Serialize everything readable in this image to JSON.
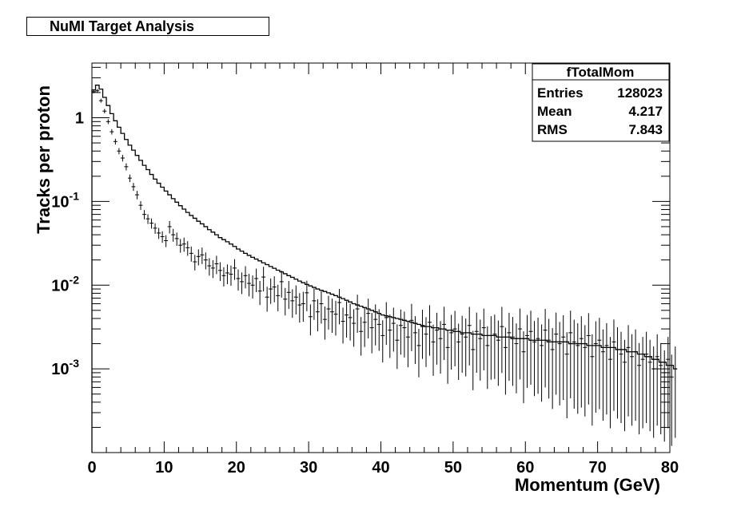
{
  "chart_data": {
    "type": "histogram",
    "title": "NuMI Target Analysis",
    "xlabel": "Momentum (GeV)",
    "ylabel": "Tracks per proton",
    "xlim": [
      0,
      80
    ],
    "ylim": [
      0.0001,
      4.5
    ],
    "ylog": true,
    "x_ticks": [
      "0",
      "10",
      "20",
      "30",
      "40",
      "50",
      "60",
      "70",
      "80"
    ],
    "y_ticks": [
      {
        "value": 1,
        "base": "1",
        "exp": ""
      },
      {
        "value": 0.1,
        "base": "10",
        "exp": "-1"
      },
      {
        "value": 0.01,
        "base": "10",
        "exp": "-2"
      },
      {
        "value": 0.001,
        "base": "10",
        "exp": "-3"
      }
    ],
    "stats_box": {
      "name": "fTotalMom",
      "rows": [
        {
          "label": "Entries",
          "value": "128023"
        },
        {
          "label": "Mean",
          "value": "4.217"
        },
        {
          "label": "RMS",
          "value": "7.843"
        }
      ],
      "placement": "top-right"
    },
    "series": [
      {
        "kind": "step-histogram",
        "bin_width": 0.5,
        "x_start": 0,
        "values": [
          2.15,
          2.45,
          2.2,
          1.75,
          1.4,
          1.12,
          0.92,
          0.77,
          0.65,
          0.55,
          0.47,
          0.41,
          0.355,
          0.31,
          0.27,
          0.24,
          0.21,
          0.185,
          0.165,
          0.148,
          0.133,
          0.12,
          0.108,
          0.098,
          0.089,
          0.081,
          0.074,
          0.068,
          0.063,
          0.058,
          0.054,
          0.05,
          0.046,
          0.043,
          0.04,
          0.037,
          0.035,
          0.033,
          0.031,
          0.029,
          0.027,
          0.0255,
          0.024,
          0.0227,
          0.0215,
          0.0205,
          0.0195,
          0.0185,
          0.0176,
          0.0167,
          0.0159,
          0.0151,
          0.0144,
          0.0137,
          0.013,
          0.0124,
          0.0118,
          0.0112,
          0.0107,
          0.0102,
          0.0098,
          0.0094,
          0.009,
          0.0087,
          0.0084,
          0.0081,
          0.0078,
          0.0075,
          0.0072,
          0.0069,
          0.0066,
          0.0063,
          0.006,
          0.0058,
          0.0056,
          0.0054,
          0.0052,
          0.005,
          0.0048,
          0.0046,
          0.0044,
          0.0043,
          0.0042,
          0.0041,
          0.004,
          0.0039,
          0.0038,
          0.0037,
          0.0036,
          0.0035,
          0.0034,
          0.0033,
          0.0032,
          0.0032,
          0.0031,
          0.0031,
          0.003,
          0.003,
          0.0029,
          0.0029,
          0.0028,
          0.0028,
          0.0027,
          0.0027,
          0.0027,
          0.0026,
          0.0026,
          0.0026,
          0.0025,
          0.0025,
          0.0025,
          0.0025,
          0.0024,
          0.0024,
          0.0024,
          0.0024,
          0.0023,
          0.0023,
          0.0023,
          0.0023,
          0.0023,
          0.0022,
          0.0022,
          0.0022,
          0.0022,
          0.0022,
          0.0021,
          0.0021,
          0.0021,
          0.0021,
          0.0021,
          0.0021,
          0.002,
          0.002,
          0.002,
          0.002,
          0.002,
          0.0019,
          0.0019,
          0.0019,
          0.0019,
          0.0018,
          0.0018,
          0.0018,
          0.0018,
          0.0017,
          0.0017,
          0.0017,
          0.0016,
          0.0016,
          0.0016,
          0.0015,
          0.0015,
          0.0014,
          0.0014,
          0.0013,
          0.0013,
          0.0012,
          0.0012,
          0.0011,
          0.0011,
          0.001
        ]
      },
      {
        "kind": "points-with-errors",
        "bin_width": 0.5,
        "x_start": 0.25,
        "values": [
          2.05,
          2.1,
          1.6,
          1.2,
          0.9,
          0.68,
          0.52,
          0.4,
          0.33,
          0.26,
          0.19,
          0.15,
          0.12,
          0.09,
          0.07,
          0.062,
          0.055,
          0.048,
          0.042,
          0.038,
          0.034,
          0.05,
          0.04,
          0.036,
          0.03,
          0.031,
          0.028,
          0.024,
          0.019,
          0.022,
          0.023,
          0.02,
          0.017,
          0.016,
          0.018,
          0.015,
          0.013,
          0.014,
          0.0135,
          0.016,
          0.012,
          0.011,
          0.013,
          0.0105,
          0.01,
          0.012,
          0.0085,
          0.0125,
          0.0072,
          0.009,
          0.0095,
          0.0075,
          0.011,
          0.0068,
          0.0082,
          0.0065,
          0.0072,
          0.0058,
          0.006,
          0.0081,
          0.0042,
          0.0065,
          0.0048,
          0.006,
          0.0039,
          0.0052,
          0.0048,
          0.0045,
          0.0062,
          0.0037,
          0.0044,
          0.0041,
          0.0035,
          0.0052,
          0.0028,
          0.0036,
          0.0046,
          0.0031,
          0.0039,
          0.0034,
          0.0025,
          0.0041,
          0.0029,
          0.0035,
          0.0022,
          0.0033,
          0.0031,
          0.0024,
          0.0038,
          0.0027,
          0.0019,
          0.0032,
          0.0026,
          0.0036,
          0.0021,
          0.0029,
          0.0023,
          0.0034,
          0.0018,
          0.0027,
          0.003,
          0.0021,
          0.0026,
          0.0024,
          0.0033,
          0.0017,
          0.0028,
          0.0023,
          0.0031,
          0.0019,
          0.0025,
          0.0026,
          0.0022,
          0.0032,
          0.0018,
          0.0027,
          0.0024,
          0.002,
          0.003,
          0.0016,
          0.0025,
          0.0028,
          0.0021,
          0.0023,
          0.0019,
          0.0029,
          0.0022,
          0.0017,
          0.0026,
          0.002,
          0.0024,
          0.0015,
          0.0027,
          0.0021,
          0.0019,
          0.0023,
          0.0018,
          0.0025,
          0.0014,
          0.002,
          0.0022,
          0.0016,
          0.0019,
          0.0013,
          0.0021,
          0.0017,
          0.0015,
          0.0012,
          0.0018,
          0.0014,
          0.0016,
          0.0011,
          0.0013,
          0.0015,
          0.0012,
          0.001,
          0.0014,
          0.0011,
          0.0009,
          0.0013,
          0.0008,
          0.001
        ]
      }
    ]
  }
}
